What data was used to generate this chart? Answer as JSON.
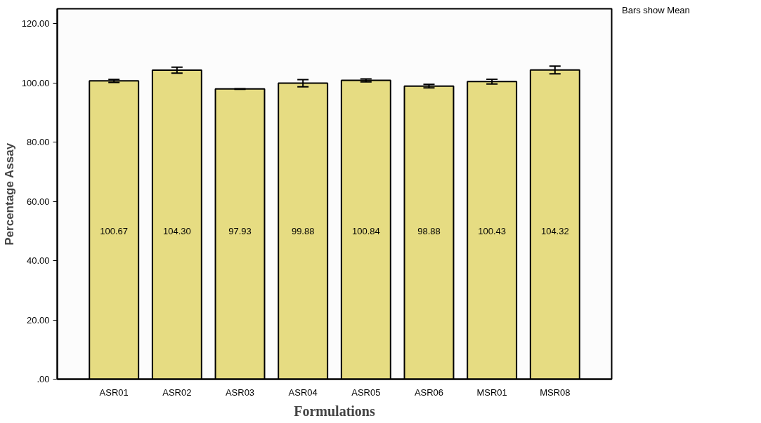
{
  "chart_data": {
    "type": "bar",
    "xlabel": "Formulations",
    "ylabel": "Percentage Assay",
    "categories": [
      "ASR01",
      "ASR02",
      "ASR03",
      "ASR04",
      "ASR05",
      "ASR06",
      "MSR01",
      "MSR08"
    ],
    "values": [
      100.67,
      104.3,
      97.93,
      99.88,
      100.84,
      98.88,
      100.43,
      104.32
    ],
    "value_labels": [
      "100.67",
      "104.30",
      "97.93",
      "99.88",
      "100.84",
      "98.88",
      "100.43",
      "104.32"
    ],
    "errors": [
      0.5,
      1.0,
      0.1,
      1.2,
      0.5,
      0.6,
      0.8,
      1.3
    ],
    "color": "#e6dc82",
    "ylim": [
      0,
      125
    ],
    "yticks": [
      {
        "value": 0,
        "label": ".00"
      },
      {
        "value": 20,
        "label": "20.00"
      },
      {
        "value": 40,
        "label": "40.00"
      },
      {
        "value": 60,
        "label": "60.00"
      },
      {
        "value": 80,
        "label": "80.00"
      },
      {
        "value": 100,
        "label": "100.00"
      },
      {
        "value": 120,
        "label": "120.00"
      }
    ],
    "annotations": [
      "Bars show Mean"
    ],
    "grid": false
  }
}
